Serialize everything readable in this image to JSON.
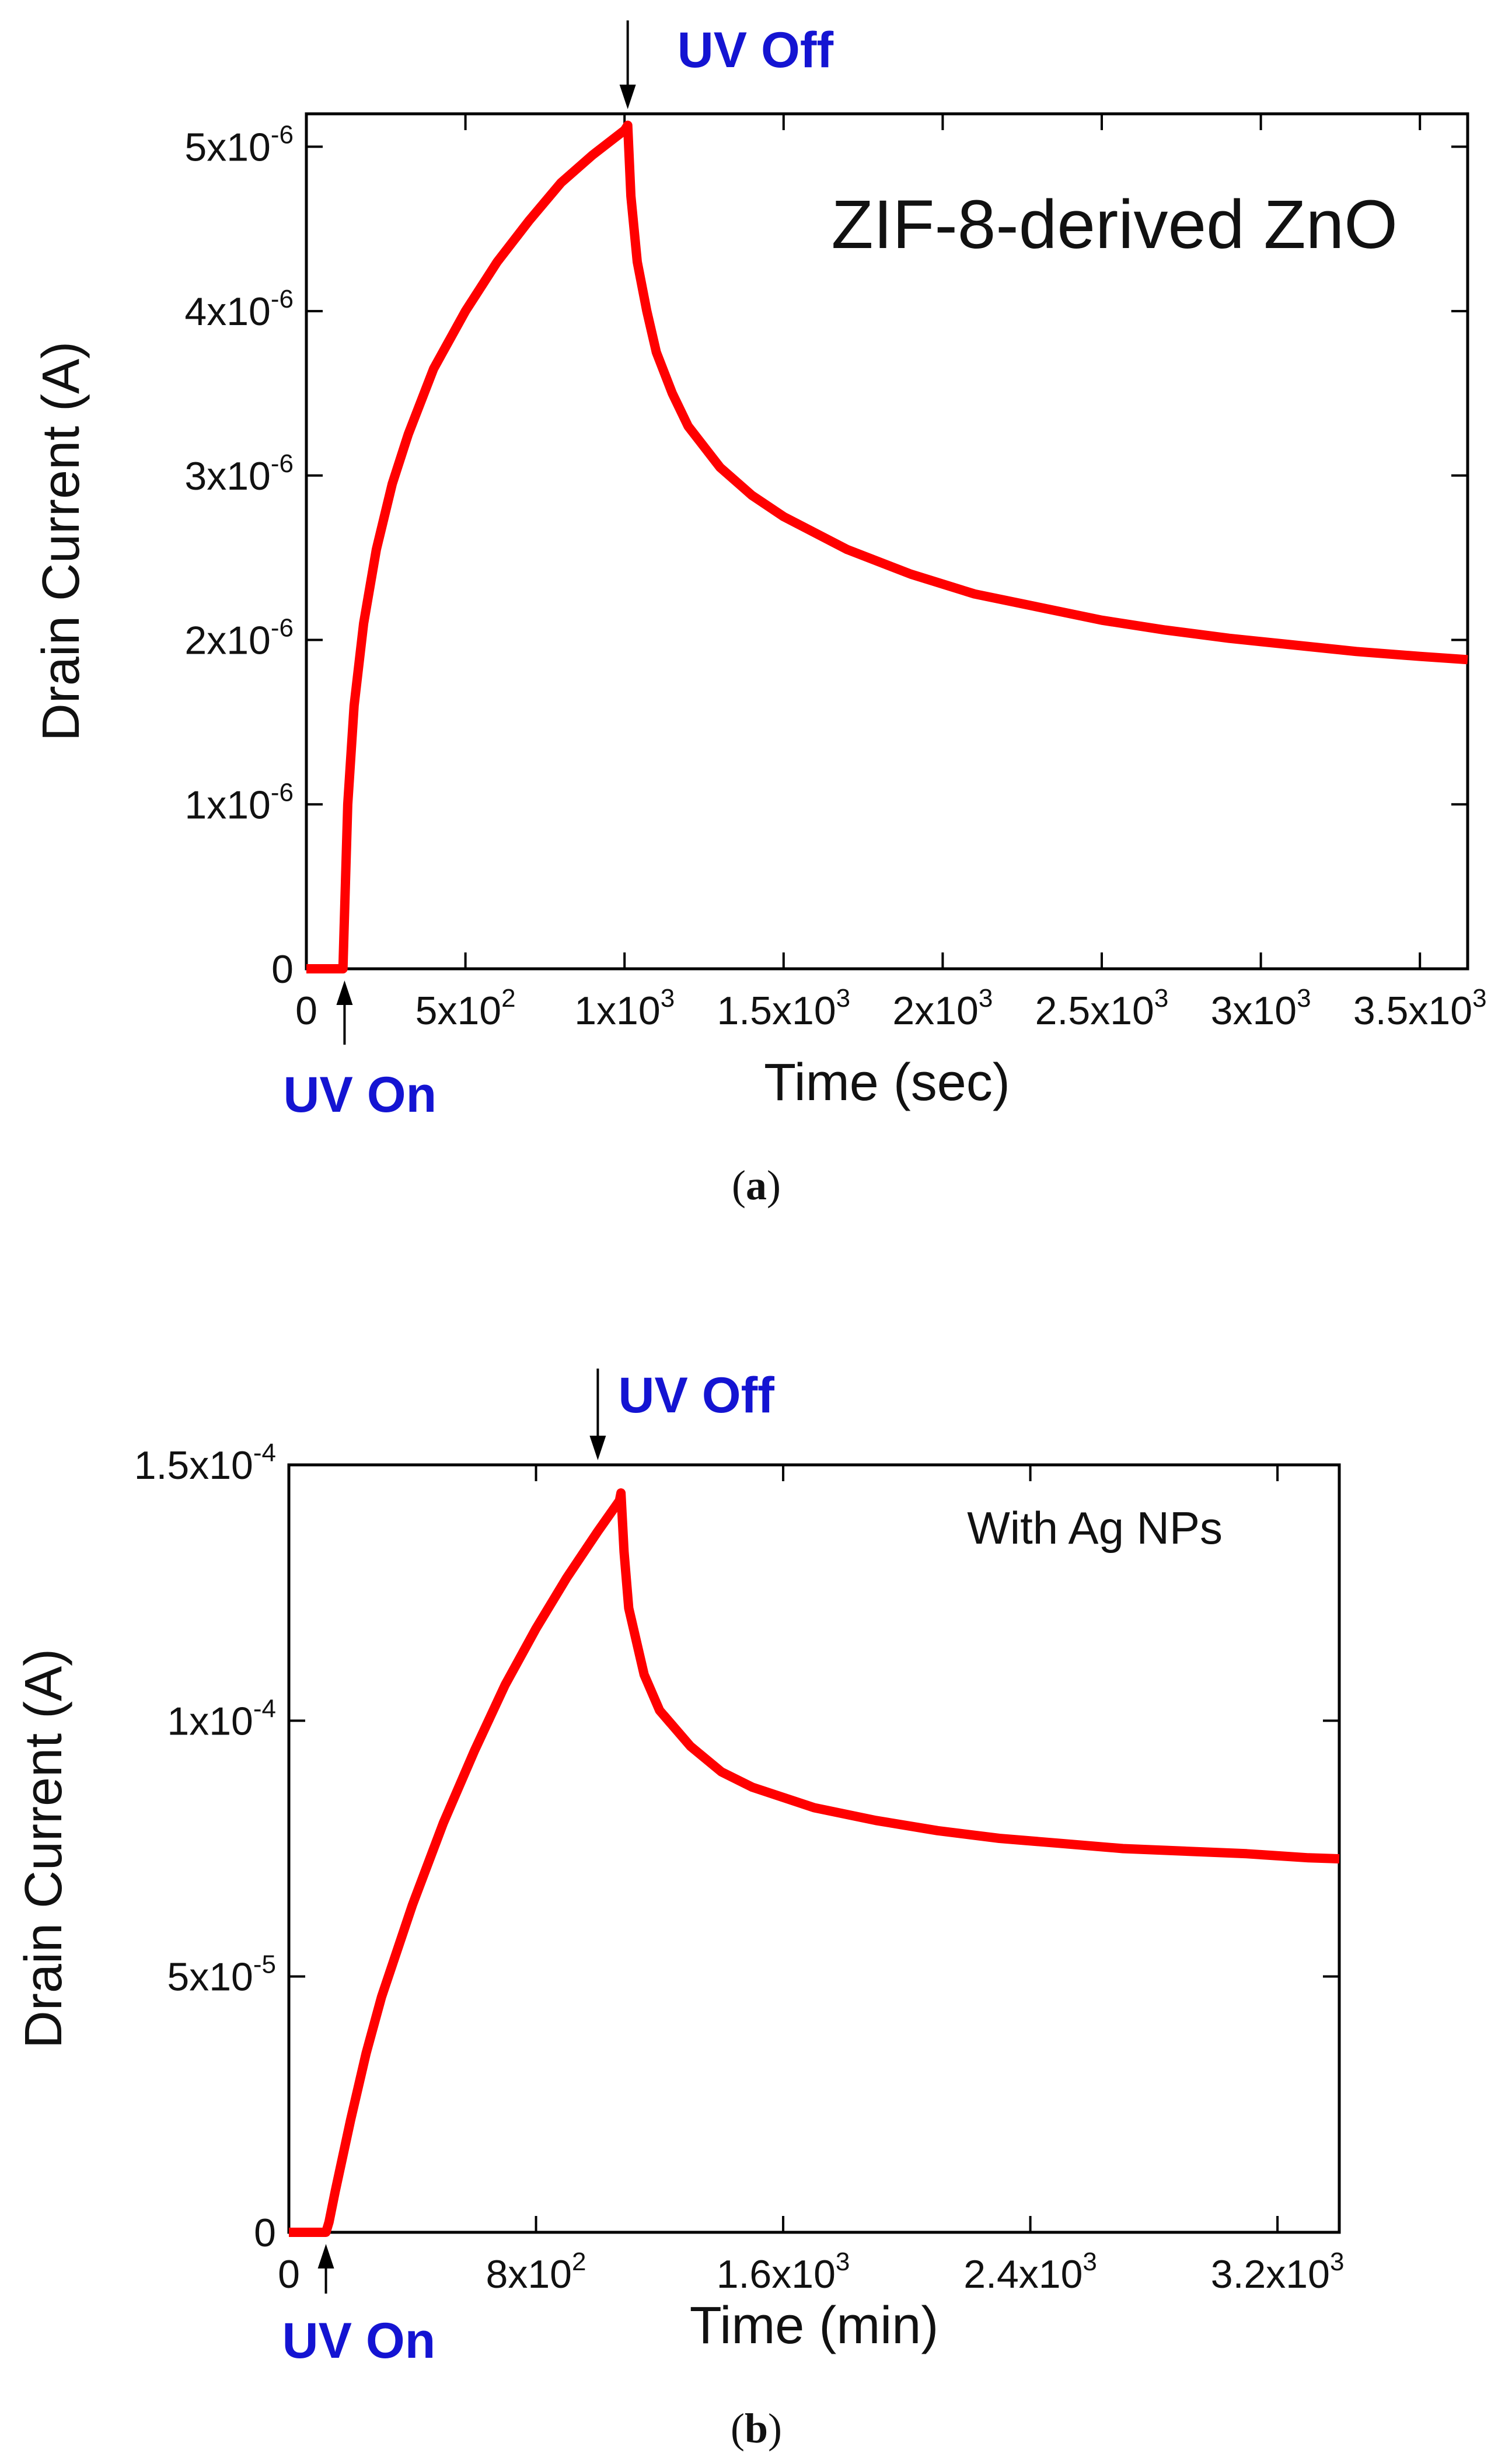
{
  "chart_data": [
    {
      "id": "a",
      "type": "line",
      "caption_letter": "a",
      "inset_label": "ZIF-8-derived ZnO",
      "xlabel": "Time (sec)",
      "ylabel": "Drain Current (A)",
      "xlim": [
        0,
        3650
      ],
      "ylim": [
        0,
        5.2e-06
      ],
      "xticks": [
        {
          "value": 0,
          "base": "0",
          "exp": ""
        },
        {
          "value": 500,
          "base": "5x10",
          "exp": "2"
        },
        {
          "value": 1000,
          "base": "1x10",
          "exp": "3"
        },
        {
          "value": 1500,
          "base": "1.5x10",
          "exp": "3"
        },
        {
          "value": 2000,
          "base": "2x10",
          "exp": "3"
        },
        {
          "value": 2500,
          "base": "2.5x10",
          "exp": "3"
        },
        {
          "value": 3000,
          "base": "3x10",
          "exp": "3"
        },
        {
          "value": 3500,
          "base": "3.5x10",
          "exp": "3"
        }
      ],
      "yticks": [
        {
          "value": 0,
          "base": "0",
          "exp": ""
        },
        {
          "value": 1e-06,
          "base": "1x10",
          "exp": "-6"
        },
        {
          "value": 2e-06,
          "base": "2x10",
          "exp": "-6"
        },
        {
          "value": 3e-06,
          "base": "3x10",
          "exp": "-6"
        },
        {
          "value": 4e-06,
          "base": "4x10",
          "exp": "-6"
        },
        {
          "value": 5e-06,
          "base": "5x10",
          "exp": "-6"
        }
      ],
      "annotations": {
        "uv_on": {
          "label": "UV On",
          "x": 120
        },
        "uv_off": {
          "label": "UV Off",
          "x": 1010
        }
      },
      "series": [
        {
          "name": "ZIF-8-derived ZnO",
          "color": "#ff0000",
          "x": [
            0,
            115,
            118,
            130,
            150,
            180,
            220,
            270,
            320,
            400,
            500,
            600,
            700,
            800,
            900,
            1000,
            1010,
            1020,
            1040,
            1070,
            1100,
            1150,
            1200,
            1300,
            1400,
            1500,
            1700,
            1900,
            2100,
            2300,
            2500,
            2700,
            2900,
            3100,
            3300,
            3500,
            3650
          ],
          "y": [
            0,
            0,
            2e-07,
            1e-06,
            1.6e-06,
            2.1e-06,
            2.55e-06,
            2.95e-06,
            3.25e-06,
            3.65e-06,
            4e-06,
            4.3e-06,
            4.55e-06,
            4.78e-06,
            4.95e-06,
            5.1e-06,
            5.13e-06,
            4.7e-06,
            4.3e-06,
            4e-06,
            3.75e-06,
            3.5e-06,
            3.3e-06,
            3.05e-06,
            2.88e-06,
            2.75e-06,
            2.55e-06,
            2.4e-06,
            2.28e-06,
            2.2e-06,
            2.12e-06,
            2.06e-06,
            2.01e-06,
            1.97e-06,
            1.93e-06,
            1.9e-06,
            1.88e-06
          ]
        }
      ]
    },
    {
      "id": "b",
      "type": "line",
      "caption_letter": "b",
      "inset_label": "With Ag NPs",
      "xlabel": "Time (min)",
      "ylabel": "Drain Current (A)",
      "xlim": [
        0,
        3400
      ],
      "ylim": [
        0,
        0.00015
      ],
      "xticks": [
        {
          "value": 0,
          "base": "0",
          "exp": ""
        },
        {
          "value": 800,
          "base": "8x10",
          "exp": "2"
        },
        {
          "value": 1600,
          "base": "1.6x10",
          "exp": "3"
        },
        {
          "value": 2400,
          "base": "2.4x10",
          "exp": "3"
        },
        {
          "value": 3200,
          "base": "3.2x10",
          "exp": "3"
        }
      ],
      "yticks": [
        {
          "value": 0,
          "base": "0",
          "exp": ""
        },
        {
          "value": 5e-05,
          "base": "5x10",
          "exp": "-5"
        },
        {
          "value": 0.0001,
          "base": "1x10",
          "exp": "-4"
        },
        {
          "value": 0.00015,
          "base": "1.5x10",
          "exp": "-4"
        }
      ],
      "annotations": {
        "uv_on": {
          "label": "UV On",
          "x": 120
        },
        "uv_off": {
          "label": "UV Off",
          "x": 1000
        }
      },
      "series": [
        {
          "name": "With Ag NPs",
          "color": "#ff0000",
          "x": [
            0,
            120,
            130,
            150,
            200,
            250,
            300,
            400,
            500,
            600,
            700,
            800,
            900,
            1000,
            1070,
            1075,
            1085,
            1100,
            1150,
            1200,
            1300,
            1400,
            1500,
            1700,
            1900,
            2100,
            2300,
            2500,
            2700,
            2900,
            3100,
            3300,
            3400
          ],
          "y": [
            0,
            0,
            2e-06,
            8e-06,
            2.2e-05,
            3.5e-05,
            4.6e-05,
            6.4e-05,
            8e-05,
            9.4e-05,
            0.000107,
            0.000118,
            0.000128,
            0.000137,
            0.000143,
            0.0001445,
            0.000133,
            0.000122,
            0.000109,
            0.000102,
            9.5e-05,
            9e-05,
            8.7e-05,
            8.3e-05,
            8.05e-05,
            7.85e-05,
            7.7e-05,
            7.6e-05,
            7.5e-05,
            7.45e-05,
            7.4e-05,
            7.32e-05,
            7.3e-05
          ]
        }
      ]
    }
  ]
}
